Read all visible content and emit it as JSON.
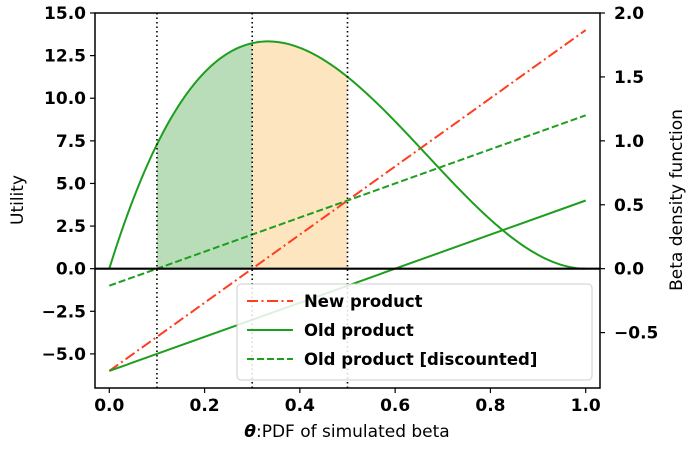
{
  "chart_data": {
    "type": "line",
    "x_axis": {
      "label_prefix": "θ",
      "label_rest": ":PDF of simulated beta",
      "range": [
        -0.03,
        1.03
      ],
      "ticks": [
        0.0,
        0.2,
        0.4,
        0.6,
        0.8,
        1.0
      ],
      "tick_labels": [
        "0.0",
        "0.2",
        "0.4",
        "0.6",
        "0.8",
        "1.0"
      ]
    },
    "y_axis_left": {
      "label": "Utility",
      "range": [
        -7.0,
        15.0
      ],
      "ticks": [
        -5.0,
        -2.5,
        0.0,
        2.5,
        5.0,
        7.5,
        10.0,
        12.5,
        15.0
      ],
      "tick_labels": [
        "−5.0",
        "−2.5",
        "0.0",
        "2.5",
        "5.0",
        "7.5",
        "10.0",
        "12.5",
        "15.0"
      ]
    },
    "y_axis_right": {
      "label": "Beta density function",
      "range": [
        -0.9333,
        2.0
      ],
      "ticks": [
        -0.5,
        0.0,
        0.5,
        1.0,
        1.5,
        2.0
      ],
      "tick_labels": [
        "−0.5",
        "0.0",
        "0.5",
        "1.0",
        "1.5",
        "2.0"
      ]
    },
    "series": [
      {
        "name": "New product",
        "axis": "left",
        "style": "dashdot",
        "color": "#ff3d1f",
        "x": [
          0.0,
          1.0
        ],
        "y": [
          -6.0,
          14.0
        ]
      },
      {
        "name": "Old product",
        "axis": "left",
        "style": "solid",
        "color": "#1e9e1e",
        "x": [
          0.0,
          1.0
        ],
        "y": [
          -6.0,
          4.0
        ]
      },
      {
        "name": "Old product [discounted]",
        "axis": "left",
        "style": "dashed",
        "color": "#1e9e1e",
        "x": [
          0.0,
          1.0
        ],
        "y": [
          -1.0,
          9.0
        ]
      },
      {
        "axis": "right",
        "style": "solid",
        "color": "#1e9e1e",
        "distribution": "Beta(2,3)",
        "x_range": [
          0.0,
          1.0
        ]
      }
    ],
    "shaded_regions": [
      {
        "x_range": [
          0.1,
          0.3
        ],
        "color": "#b8ddb8"
      },
      {
        "x_range": [
          0.3,
          0.5
        ],
        "color": "#fde5c0"
      }
    ],
    "vertical_lines": [
      0.1,
      0.3,
      0.5
    ],
    "zero_line": 0.0,
    "legend_position": "lower right"
  }
}
